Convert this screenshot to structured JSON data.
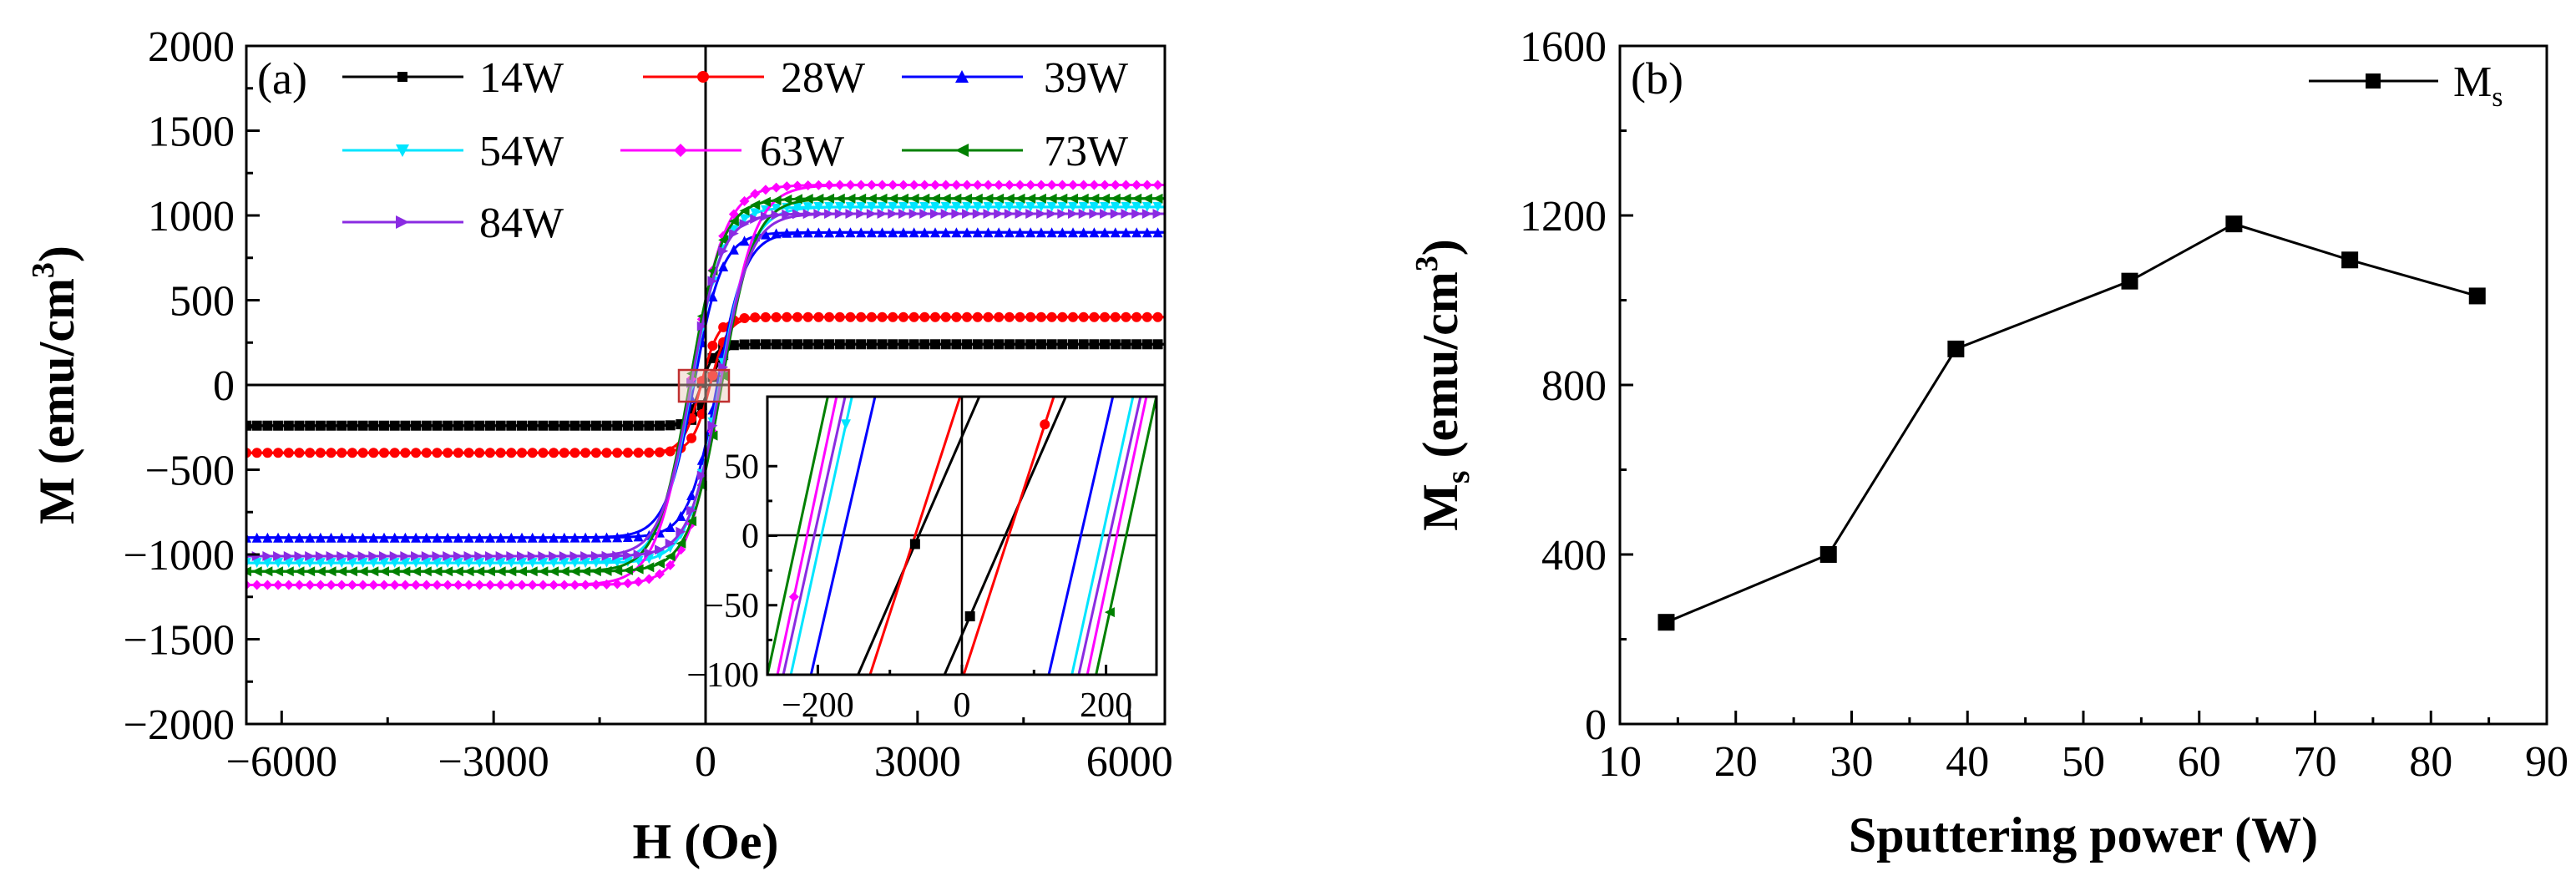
{
  "chart_data": [
    {
      "panel": "(a)",
      "type": "line",
      "xlabel": "H (Oe)",
      "ylabel": "M (emu/cm3)",
      "ylabel_main": "M (emu/cm",
      "ylabel_sup": "3",
      "ylabel_close": ")",
      "xlim": [
        -6500,
        6500
      ],
      "ylim": [
        -2000,
        2000
      ],
      "xticks": [
        -6000,
        -3000,
        0,
        3000,
        6000
      ],
      "xtick_labels": [
        "−6000",
        "−3000",
        "0",
        "3000",
        "6000"
      ],
      "yticks": [
        -2000,
        -1500,
        -1000,
        -500,
        0,
        500,
        1000,
        1500,
        2000
      ],
      "ytick_labels": [
        "−2000",
        "−1500",
        "−1000",
        "−500",
        "0",
        "500",
        "1000",
        "1500",
        "2000"
      ],
      "series": [
        {
          "name": "14W",
          "color": "#000000",
          "marker": "square",
          "ms": 240,
          "hc": 60
        },
        {
          "name": "28W",
          "color": "#ff0000",
          "marker": "circle",
          "ms": 400,
          "hc": 65
        },
        {
          "name": "39W",
          "color": "#0000ff",
          "marker": "triangle-up",
          "ms": 900,
          "hc": 165
        },
        {
          "name": "54W",
          "color": "#00e5ff",
          "marker": "triangle-down",
          "ms": 1050,
          "hc": 195
        },
        {
          "name": "63W",
          "color": "#ff00ff",
          "marker": "diamond",
          "ms": 1180,
          "hc": 215
        },
        {
          "name": "73W",
          "color": "#008000",
          "marker": "triangle-left",
          "ms": 1100,
          "hc": 228
        },
        {
          "name": "84W",
          "color": "#8a2be2",
          "marker": "triangle-right",
          "ms": 1010,
          "hc": 205
        }
      ],
      "inset": {
        "xlim": [
          -270,
          270
        ],
        "ylim": [
          -100,
          100
        ],
        "xticks": [
          -200,
          0,
          200
        ],
        "xtick_labels": [
          "−200",
          "0",
          "200"
        ],
        "yticks": [
          -100,
          -50,
          0,
          50
        ],
        "ytick_labels": [
          "−100",
          "−50",
          "0",
          "50"
        ]
      }
    },
    {
      "panel": "(b)",
      "type": "line",
      "xlabel": "Sputtering power (W)",
      "ylabel": "Ms (emu/cm3)",
      "ylabel_M": "M",
      "ylabel_sub": "s",
      "ylabel_mid": " (emu/cm",
      "ylabel_sup": "3",
      "ylabel_close": ")",
      "xlim": [
        10,
        90
      ],
      "ylim": [
        0,
        1600
      ],
      "xticks": [
        10,
        20,
        30,
        40,
        50,
        60,
        70,
        80,
        90
      ],
      "xtick_labels": [
        "10",
        "20",
        "30",
        "40",
        "50",
        "60",
        "70",
        "80",
        "90"
      ],
      "yticks": [
        0,
        400,
        800,
        1200,
        1600
      ],
      "ytick_labels": [
        "0",
        "400",
        "800",
        "1200",
        "1600"
      ],
      "legend_main": "M",
      "legend_sub": "s",
      "legend": "Ms",
      "series": [
        {
          "name": "Ms",
          "color": "#000000",
          "marker": "square",
          "x": [
            14,
            28,
            39,
            54,
            63,
            73,
            84
          ],
          "y": [
            240,
            400,
            885,
            1045,
            1180,
            1095,
            1010
          ]
        }
      ]
    }
  ]
}
